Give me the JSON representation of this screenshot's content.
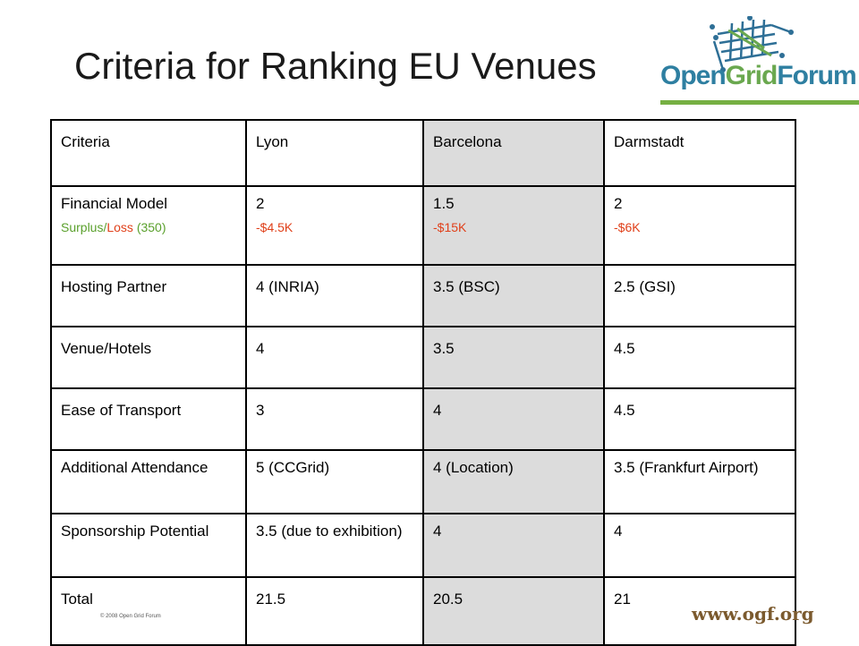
{
  "slide": {
    "title": "Criteria for Ranking EU Venues",
    "logo": {
      "part1": "Open",
      "part2": "Grid",
      "part3": "Forum"
    },
    "footer": {
      "copyright": "© 2008 Open Grid Forum",
      "url": "www.ogf.org"
    },
    "colors": {
      "accent_green": "#76b043",
      "highlight_column": "#dcdcdc",
      "loss_red": "#e0401a",
      "surplus_green": "#5aa02c"
    }
  },
  "table": {
    "headers": [
      "Criteria",
      "Lyon",
      "Barcelona",
      "Darmstadt"
    ],
    "financial": {
      "label": "Financial Model",
      "sub_surplus": "Surplus",
      "sub_sep": "/",
      "sub_loss": "Loss",
      "sub_rest": " (350)",
      "values": [
        "2",
        "1.5",
        "2"
      ],
      "subs": [
        "-$4.5K",
        "-$15K",
        "-$6K"
      ]
    },
    "rows": [
      [
        "Hosting Partner",
        "4 (INRIA)",
        "3.5 (BSC)",
        "2.5 (GSI)"
      ],
      [
        "Venue/Hotels",
        "4",
        "3.5",
        "4.5"
      ],
      [
        "Ease of Transport",
        "3",
        "4",
        "4.5"
      ],
      [
        "Additional Attendance",
        "5 (CCGrid)",
        "4 (Location)",
        "3.5 (Frankfurt Airport)"
      ],
      [
        "Sponsorship Potential",
        "3.5 (due to exhibition)",
        "4",
        "4"
      ],
      [
        "Total",
        "21.5",
        "20.5",
        "21"
      ]
    ]
  }
}
